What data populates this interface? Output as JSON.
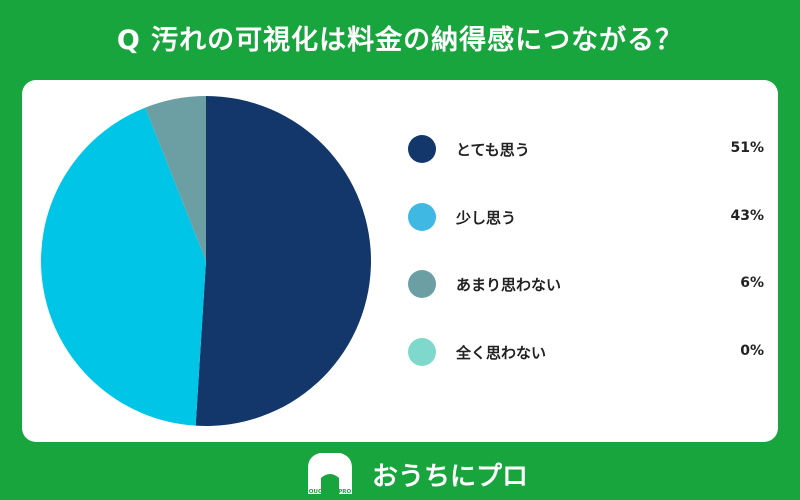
{
  "title": "Q 汚れの可視化は料金の納得感につながる？",
  "chart_data": {
    "type": "pie",
    "title": "Q 汚れの可視化は料金の納得感につながる？",
    "slices": [
      {
        "label": "とても思う",
        "value": 51,
        "display": "51%",
        "color": "#13376a"
      },
      {
        "label": "少し思う",
        "value": 43,
        "display": "43%",
        "color": "#00c5e6"
      },
      {
        "label": "あまり思わない",
        "value": 6,
        "display": "6%",
        "color": "#6b9fa4"
      },
      {
        "label": "全く思わない",
        "value": 0,
        "display": "0%",
        "color": "#7fd8cc"
      }
    ],
    "legend_dot_colors": [
      "#13376a",
      "#3fb8e3",
      "#6b9fa4",
      "#7fd8cc"
    ],
    "start": "12 o'clock",
    "direction": "clockwise",
    "legend": "right"
  },
  "logo": {
    "badge_text": "OUCHI ni PRO",
    "name": "おうちにプロ"
  },
  "colors": {
    "background": "#18a53d",
    "card": "#ffffff"
  }
}
